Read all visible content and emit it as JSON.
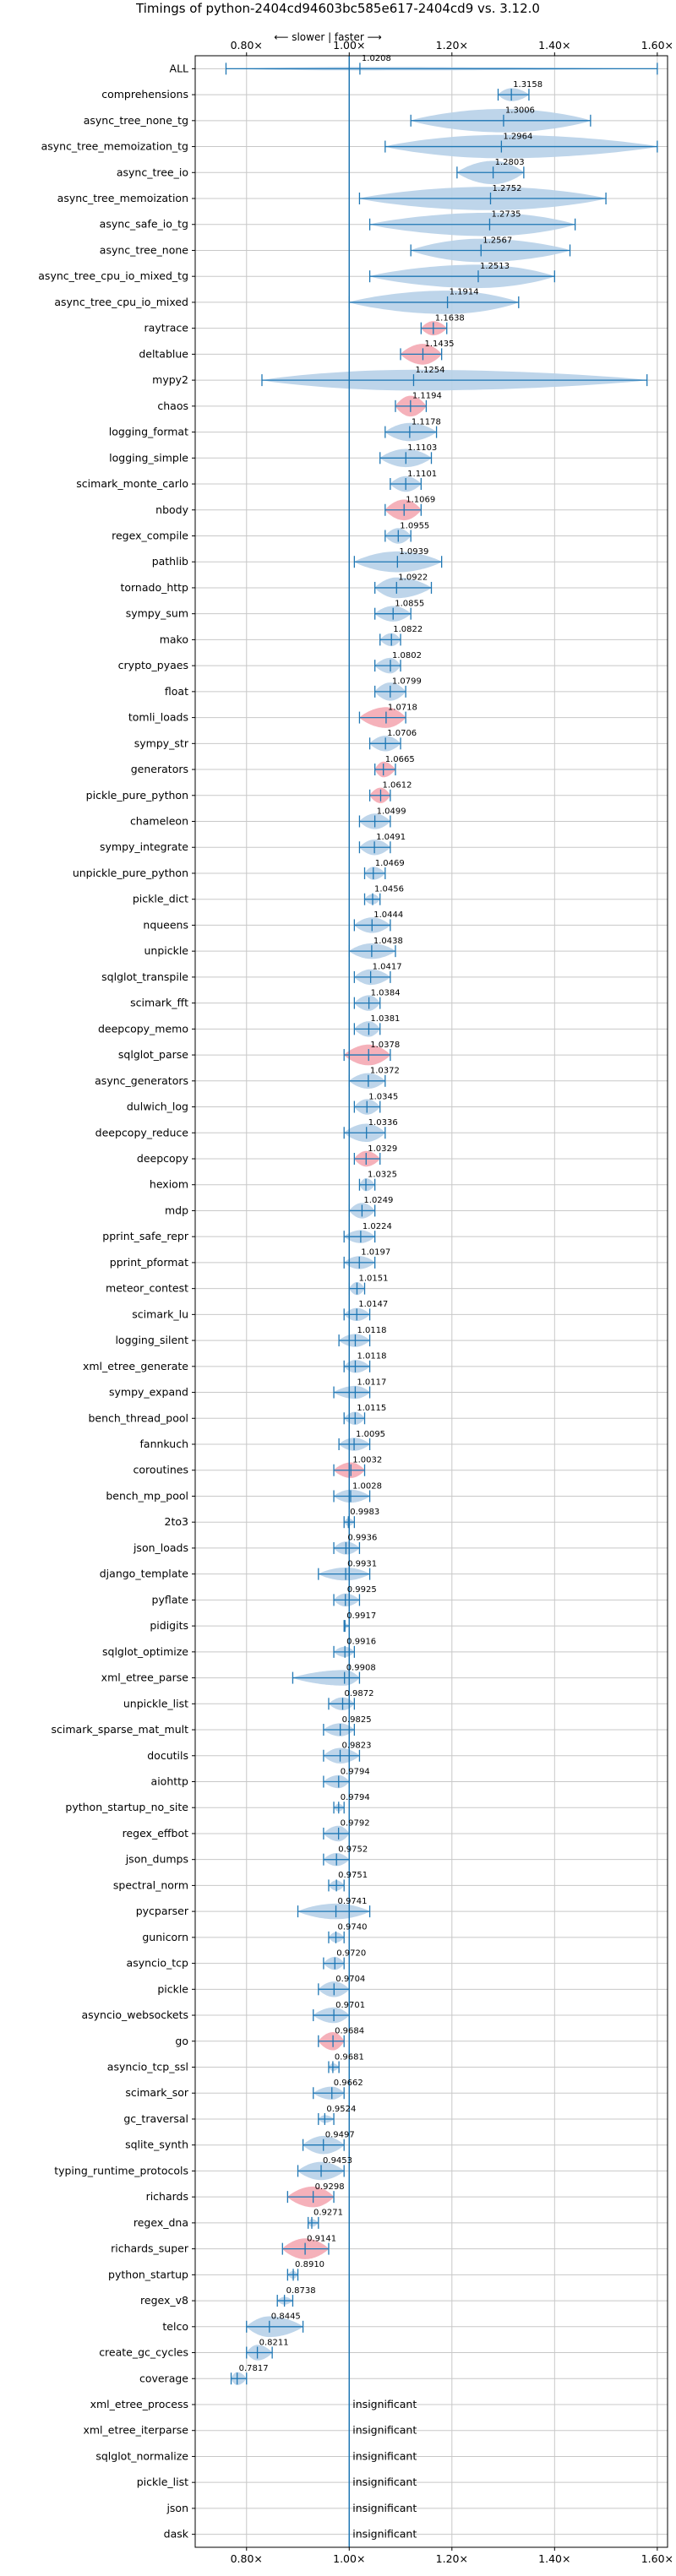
{
  "chart_data": {
    "type": "violin",
    "title": "Timings of python-2404cd94603bc585e617-2404cd9 vs. 3.12.0",
    "direction_annotation": "⟵ slower | faster ⟶",
    "xlim": [
      0.7,
      1.62
    ],
    "xticks": [
      0.8,
      1.0,
      1.2,
      1.4,
      1.6
    ],
    "xtick_labels": [
      "0.80×",
      "1.00×",
      "1.20×",
      "1.40×",
      "1.60×"
    ],
    "reference_line": 1.0,
    "grid": true,
    "colors": {
      "faster": "#b7d0e8",
      "slower": "#f4a9b3",
      "line": "#1f77b4"
    },
    "benchmarks": [
      {
        "name": "ALL",
        "value": 1.0208,
        "label": "1.0208",
        "min": 0.76,
        "max": 1.6,
        "width": 0.05,
        "slower": false
      },
      {
        "name": "comprehensions",
        "value": 1.3158,
        "label": "1.3158",
        "min": 1.29,
        "max": 1.35,
        "width": 0.5,
        "slower": false
      },
      {
        "name": "async_tree_none_tg",
        "value": 1.3006,
        "label": "1.3006",
        "min": 1.12,
        "max": 1.47,
        "width": 0.9,
        "slower": false
      },
      {
        "name": "async_tree_memoization_tg",
        "value": 1.2964,
        "label": "1.2964",
        "min": 1.07,
        "max": 1.6,
        "width": 0.9,
        "slower": false
      },
      {
        "name": "async_tree_io",
        "value": 1.2803,
        "label": "1.2803",
        "min": 1.21,
        "max": 1.34,
        "width": 0.9,
        "slower": false
      },
      {
        "name": "async_tree_memoization",
        "value": 1.2752,
        "label": "1.2752",
        "min": 1.02,
        "max": 1.5,
        "width": 0.9,
        "slower": false
      },
      {
        "name": "async_safe_io_tg",
        "value": 1.2735,
        "label": "1.2735",
        "min": 1.04,
        "max": 1.44,
        "width": 0.9,
        "slower": false
      },
      {
        "name": "async_tree_none",
        "value": 1.2567,
        "label": "1.2567",
        "min": 1.12,
        "max": 1.43,
        "width": 0.9,
        "slower": false
      },
      {
        "name": "async_tree_cpu_io_mixed_tg",
        "value": 1.2513,
        "label": "1.2513",
        "min": 1.04,
        "max": 1.4,
        "width": 0.9,
        "slower": false
      },
      {
        "name": "async_tree_cpu_io_mixed",
        "value": 1.1914,
        "label": "1.1914",
        "min": 1.0,
        "max": 1.33,
        "width": 0.9,
        "slower": false
      },
      {
        "name": "raytrace",
        "value": 1.1638,
        "label": "1.1638",
        "min": 1.14,
        "max": 1.19,
        "width": 0.55,
        "slower": true
      },
      {
        "name": "deltablue",
        "value": 1.1435,
        "label": "1.1435",
        "min": 1.1,
        "max": 1.18,
        "width": 0.8,
        "slower": true
      },
      {
        "name": "mypy2",
        "value": 1.1254,
        "label": "1.1254",
        "min": 0.83,
        "max": 1.58,
        "width": 0.8,
        "slower": false
      },
      {
        "name": "chaos",
        "value": 1.1194,
        "label": "1.1194",
        "min": 1.09,
        "max": 1.15,
        "width": 0.8,
        "slower": true
      },
      {
        "name": "logging_format",
        "value": 1.1178,
        "label": "1.1178",
        "min": 1.07,
        "max": 1.17,
        "width": 0.7,
        "slower": false
      },
      {
        "name": "logging_simple",
        "value": 1.1103,
        "label": "1.1103",
        "min": 1.06,
        "max": 1.16,
        "width": 0.7,
        "slower": false
      },
      {
        "name": "scimark_monte_carlo",
        "value": 1.1101,
        "label": "1.1101",
        "min": 1.08,
        "max": 1.14,
        "width": 0.6,
        "slower": false
      },
      {
        "name": "nbody",
        "value": 1.1069,
        "label": "1.1069",
        "min": 1.07,
        "max": 1.14,
        "width": 0.8,
        "slower": true
      },
      {
        "name": "regex_compile",
        "value": 1.0955,
        "label": "1.0955",
        "min": 1.07,
        "max": 1.12,
        "width": 0.6,
        "slower": false
      },
      {
        "name": "pathlib",
        "value": 1.0939,
        "label": "1.0939",
        "min": 1.01,
        "max": 1.18,
        "width": 0.8,
        "slower": false
      },
      {
        "name": "tornado_http",
        "value": 1.0922,
        "label": "1.0922",
        "min": 1.05,
        "max": 1.16,
        "width": 0.8,
        "slower": false
      },
      {
        "name": "sympy_sum",
        "value": 1.0855,
        "label": "1.0855",
        "min": 1.05,
        "max": 1.12,
        "width": 0.6,
        "slower": false
      },
      {
        "name": "mako",
        "value": 1.0822,
        "label": "1.0822",
        "min": 1.06,
        "max": 1.1,
        "width": 0.5,
        "slower": false
      },
      {
        "name": "crypto_pyaes",
        "value": 1.0802,
        "label": "1.0802",
        "min": 1.05,
        "max": 1.1,
        "width": 0.6,
        "slower": false
      },
      {
        "name": "float",
        "value": 1.0799,
        "label": "1.0799",
        "min": 1.05,
        "max": 1.11,
        "width": 0.7,
        "slower": false
      },
      {
        "name": "tomli_loads",
        "value": 1.0718,
        "label": "1.0718",
        "min": 1.02,
        "max": 1.11,
        "width": 0.8,
        "slower": true
      },
      {
        "name": "sympy_str",
        "value": 1.0706,
        "label": "1.0706",
        "min": 1.04,
        "max": 1.1,
        "width": 0.6,
        "slower": false
      },
      {
        "name": "generators",
        "value": 1.0665,
        "label": "1.0665",
        "min": 1.05,
        "max": 1.09,
        "width": 0.6,
        "slower": true
      },
      {
        "name": "pickle_pure_python",
        "value": 1.0612,
        "label": "1.0612",
        "min": 1.04,
        "max": 1.08,
        "width": 0.6,
        "slower": true
      },
      {
        "name": "chameleon",
        "value": 1.0499,
        "label": "1.0499",
        "min": 1.02,
        "max": 1.08,
        "width": 0.6,
        "slower": false
      },
      {
        "name": "sympy_integrate",
        "value": 1.0491,
        "label": "1.0491",
        "min": 1.02,
        "max": 1.08,
        "width": 0.6,
        "slower": false
      },
      {
        "name": "unpickle_pure_python",
        "value": 1.0469,
        "label": "1.0469",
        "min": 1.03,
        "max": 1.07,
        "width": 0.5,
        "slower": false
      },
      {
        "name": "pickle_dict",
        "value": 1.0456,
        "label": "1.0456",
        "min": 1.03,
        "max": 1.06,
        "width": 0.4,
        "slower": false
      },
      {
        "name": "nqueens",
        "value": 1.0444,
        "label": "1.0444",
        "min": 1.01,
        "max": 1.08,
        "width": 0.6,
        "slower": false
      },
      {
        "name": "unpickle",
        "value": 1.0438,
        "label": "1.0438",
        "min": 1.0,
        "max": 1.09,
        "width": 0.6,
        "slower": false
      },
      {
        "name": "sqlglot_transpile",
        "value": 1.0417,
        "label": "1.0417",
        "min": 1.01,
        "max": 1.08,
        "width": 0.6,
        "slower": false
      },
      {
        "name": "scimark_fft",
        "value": 1.0384,
        "label": "1.0384",
        "min": 1.01,
        "max": 1.06,
        "width": 0.6,
        "slower": false
      },
      {
        "name": "deepcopy_memo",
        "value": 1.0381,
        "label": "1.0381",
        "min": 1.01,
        "max": 1.06,
        "width": 0.6,
        "slower": false
      },
      {
        "name": "sqlglot_parse",
        "value": 1.0378,
        "label": "1.0378",
        "min": 0.99,
        "max": 1.08,
        "width": 0.8,
        "slower": true
      },
      {
        "name": "async_generators",
        "value": 1.0372,
        "label": "1.0372",
        "min": 1.0,
        "max": 1.07,
        "width": 0.6,
        "slower": false
      },
      {
        "name": "dulwich_log",
        "value": 1.0345,
        "label": "1.0345",
        "min": 1.01,
        "max": 1.06,
        "width": 0.6,
        "slower": false
      },
      {
        "name": "deepcopy_reduce",
        "value": 1.0336,
        "label": "1.0336",
        "min": 0.99,
        "max": 1.07,
        "width": 0.7,
        "slower": false
      },
      {
        "name": "deepcopy",
        "value": 1.0329,
        "label": "1.0329",
        "min": 1.01,
        "max": 1.06,
        "width": 0.6,
        "slower": true
      },
      {
        "name": "hexiom",
        "value": 1.0325,
        "label": "1.0325",
        "min": 1.02,
        "max": 1.05,
        "width": 0.5,
        "slower": false
      },
      {
        "name": "mdp",
        "value": 1.0249,
        "label": "1.0249",
        "min": 1.0,
        "max": 1.05,
        "width": 0.6,
        "slower": false
      },
      {
        "name": "pprint_safe_repr",
        "value": 1.0224,
        "label": "1.0224",
        "min": 0.99,
        "max": 1.05,
        "width": 0.5,
        "slower": false
      },
      {
        "name": "pprint_pformat",
        "value": 1.0197,
        "label": "1.0197",
        "min": 0.99,
        "max": 1.05,
        "width": 0.5,
        "slower": false
      },
      {
        "name": "meteor_contest",
        "value": 1.0151,
        "label": "1.0151",
        "min": 1.0,
        "max": 1.03,
        "width": 0.5,
        "slower": false
      },
      {
        "name": "scimark_lu",
        "value": 1.0147,
        "label": "1.0147",
        "min": 0.99,
        "max": 1.04,
        "width": 0.5,
        "slower": false
      },
      {
        "name": "logging_silent",
        "value": 1.0118,
        "label": "1.0118",
        "min": 0.98,
        "max": 1.04,
        "width": 0.5,
        "slower": false
      },
      {
        "name": "xml_etree_generate",
        "value": 1.0118,
        "label": "1.0118",
        "min": 0.99,
        "max": 1.04,
        "width": 0.5,
        "slower": false
      },
      {
        "name": "sympy_expand",
        "value": 1.0117,
        "label": "1.0117",
        "min": 0.97,
        "max": 1.04,
        "width": 0.5,
        "slower": false
      },
      {
        "name": "bench_thread_pool",
        "value": 1.0115,
        "label": "1.0115",
        "min": 0.99,
        "max": 1.03,
        "width": 0.5,
        "slower": false
      },
      {
        "name": "fannkuch",
        "value": 1.0095,
        "label": "1.0095",
        "min": 0.98,
        "max": 1.04,
        "width": 0.5,
        "slower": false
      },
      {
        "name": "coroutines",
        "value": 1.0032,
        "label": "1.0032",
        "min": 0.97,
        "max": 1.03,
        "width": 0.6,
        "slower": true
      },
      {
        "name": "bench_mp_pool",
        "value": 1.0028,
        "label": "1.0028",
        "min": 0.97,
        "max": 1.04,
        "width": 0.5,
        "slower": false
      },
      {
        "name": "2to3",
        "value": 0.9983,
        "label": "0.9983",
        "min": 0.99,
        "max": 1.01,
        "width": 0.3,
        "slower": false
      },
      {
        "name": "json_loads",
        "value": 0.9936,
        "label": "0.9936",
        "min": 0.97,
        "max": 1.02,
        "width": 0.5,
        "slower": false
      },
      {
        "name": "django_template",
        "value": 0.9931,
        "label": "0.9931",
        "min": 0.94,
        "max": 1.04,
        "width": 0.5,
        "slower": false
      },
      {
        "name": "pyflate",
        "value": 0.9925,
        "label": "0.9925",
        "min": 0.97,
        "max": 1.02,
        "width": 0.5,
        "slower": false
      },
      {
        "name": "pidigits",
        "value": 0.9917,
        "label": "0.9917",
        "min": 0.99,
        "max": 1.0,
        "width": 0.2,
        "slower": false
      },
      {
        "name": "sqlglot_optimize",
        "value": 0.9916,
        "label": "0.9916",
        "min": 0.97,
        "max": 1.01,
        "width": 0.4,
        "slower": false
      },
      {
        "name": "xml_etree_parse",
        "value": 0.9908,
        "label": "0.9908",
        "min": 0.89,
        "max": 1.02,
        "width": 0.6,
        "slower": false
      },
      {
        "name": "unpickle_list",
        "value": 0.9872,
        "label": "0.9872",
        "min": 0.96,
        "max": 1.01,
        "width": 0.5,
        "slower": false
      },
      {
        "name": "scimark_sparse_mat_mult",
        "value": 0.9825,
        "label": "0.9825",
        "min": 0.95,
        "max": 1.01,
        "width": 0.5,
        "slower": false
      },
      {
        "name": "docutils",
        "value": 0.9823,
        "label": "0.9823",
        "min": 0.95,
        "max": 1.02,
        "width": 0.6,
        "slower": false
      },
      {
        "name": "aiohttp",
        "value": 0.9794,
        "label": "0.9794",
        "min": 0.95,
        "max": 1.0,
        "width": 0.5,
        "slower": false
      },
      {
        "name": "python_startup_no_site",
        "value": 0.9794,
        "label": "0.9794",
        "min": 0.97,
        "max": 0.99,
        "width": 0.3,
        "slower": false
      },
      {
        "name": "regex_effbot",
        "value": 0.9792,
        "label": "0.9792",
        "min": 0.95,
        "max": 1.0,
        "width": 0.6,
        "slower": false
      },
      {
        "name": "json_dumps",
        "value": 0.9752,
        "label": "0.9752",
        "min": 0.95,
        "max": 1.0,
        "width": 0.5,
        "slower": false
      },
      {
        "name": "spectral_norm",
        "value": 0.9751,
        "label": "0.9751",
        "min": 0.96,
        "max": 0.99,
        "width": 0.4,
        "slower": false
      },
      {
        "name": "pycparser",
        "value": 0.9741,
        "label": "0.9741",
        "min": 0.9,
        "max": 1.04,
        "width": 0.6,
        "slower": false
      },
      {
        "name": "gunicorn",
        "value": 0.974,
        "label": "0.9740",
        "min": 0.96,
        "max": 0.99,
        "width": 0.4,
        "slower": false
      },
      {
        "name": "asyncio_tcp",
        "value": 0.972,
        "label": "0.9720",
        "min": 0.95,
        "max": 0.99,
        "width": 0.5,
        "slower": false
      },
      {
        "name": "pickle",
        "value": 0.9704,
        "label": "0.9704",
        "min": 0.94,
        "max": 1.0,
        "width": 0.6,
        "slower": false
      },
      {
        "name": "asyncio_websockets",
        "value": 0.9701,
        "label": "0.9701",
        "min": 0.93,
        "max": 1.0,
        "width": 0.6,
        "slower": false
      },
      {
        "name": "go",
        "value": 0.9684,
        "label": "0.9684",
        "min": 0.94,
        "max": 0.99,
        "width": 0.7,
        "slower": true
      },
      {
        "name": "asyncio_tcp_ssl",
        "value": 0.9681,
        "label": "0.9681",
        "min": 0.96,
        "max": 0.98,
        "width": 0.3,
        "slower": false
      },
      {
        "name": "scimark_sor",
        "value": 0.9662,
        "label": "0.9662",
        "min": 0.93,
        "max": 0.99,
        "width": 0.5,
        "slower": false
      },
      {
        "name": "gc_traversal",
        "value": 0.9524,
        "label": "0.9524",
        "min": 0.94,
        "max": 0.97,
        "width": 0.3,
        "slower": false
      },
      {
        "name": "sqlite_synth",
        "value": 0.9497,
        "label": "0.9497",
        "min": 0.91,
        "max": 0.99,
        "width": 0.7,
        "slower": false
      },
      {
        "name": "typing_runtime_protocols",
        "value": 0.9453,
        "label": "0.9453",
        "min": 0.9,
        "max": 0.99,
        "width": 0.7,
        "slower": false
      },
      {
        "name": "richards",
        "value": 0.9298,
        "label": "0.9298",
        "min": 0.88,
        "max": 0.97,
        "width": 0.8,
        "slower": true
      },
      {
        "name": "regex_dna",
        "value": 0.9271,
        "label": "0.9271",
        "min": 0.92,
        "max": 0.94,
        "width": 0.3,
        "slower": false
      },
      {
        "name": "richards_super",
        "value": 0.9141,
        "label": "0.9141",
        "min": 0.87,
        "max": 0.96,
        "width": 0.8,
        "slower": true
      },
      {
        "name": "python_startup",
        "value": 0.891,
        "label": "0.8910",
        "min": 0.88,
        "max": 0.9,
        "width": 0.3,
        "slower": false
      },
      {
        "name": "regex_v8",
        "value": 0.8738,
        "label": "0.8738",
        "min": 0.86,
        "max": 0.89,
        "width": 0.3,
        "slower": false
      },
      {
        "name": "telco",
        "value": 0.8445,
        "label": "0.8445",
        "min": 0.8,
        "max": 0.91,
        "width": 0.8,
        "slower": false
      },
      {
        "name": "create_gc_cycles",
        "value": 0.8211,
        "label": "0.8211",
        "min": 0.8,
        "max": 0.85,
        "width": 0.6,
        "slower": false
      },
      {
        "name": "coverage",
        "value": 0.7817,
        "label": "0.7817",
        "min": 0.77,
        "max": 0.8,
        "width": 0.5,
        "slower": false
      },
      {
        "name": "xml_etree_process",
        "value": null,
        "label": "insignificant"
      },
      {
        "name": "xml_etree_iterparse",
        "value": null,
        "label": "insignificant"
      },
      {
        "name": "sqlglot_normalize",
        "value": null,
        "label": "insignificant"
      },
      {
        "name": "pickle_list",
        "value": null,
        "label": "insignificant"
      },
      {
        "name": "json",
        "value": null,
        "label": "insignificant"
      },
      {
        "name": "dask",
        "value": null,
        "label": "insignificant"
      }
    ]
  }
}
